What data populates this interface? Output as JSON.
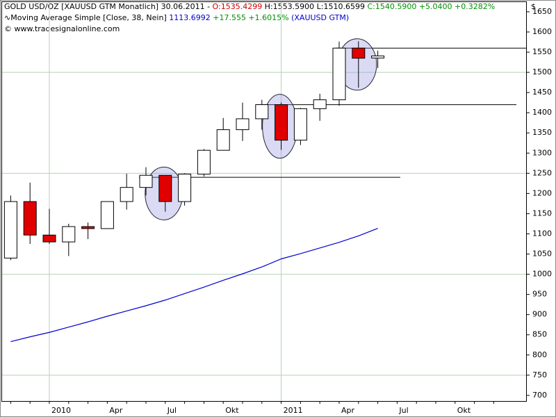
{
  "chart_data": {
    "type": "candlestick",
    "header": {
      "title": "GOLD USD/OZ [XAUUSD GTM  Monatlich] 30.06.2011 - ",
      "open": "O:1535.4299",
      "high_low": " H:1553.5900 L:1510.6599 ",
      "close": "C:1540.5900 +5.0400 +0.3282%",
      "ma_name": "Moving Average Simple [Close, 38, Nein] ",
      "ma_value": "1113.6992",
      "ma_change": " +17.555 +1.6015% ",
      "ma_symbol": "(XAUUSD GTM)",
      "copyright": "© www.tradesignalonline.com",
      "currency": "$"
    },
    "categories": [
      null,
      null,
      "2010",
      null,
      null,
      "Apr",
      null,
      null,
      "Jul",
      null,
      null,
      "Okt",
      null,
      null,
      "2011",
      null,
      null,
      "Apr",
      null,
      null,
      "Jul",
      null,
      null,
      "Okt",
      null,
      null
    ],
    "open": [
      1040,
      1180,
      1097,
      1080,
      1118,
      1113,
      1180,
      1215,
      1245,
      1180,
      1248,
      1307,
      1358,
      1385,
      1420,
      1332,
      1410,
      1432,
      1560,
      1535.4299,
      null,
      null,
      null,
      null,
      null,
      null
    ],
    "high": [
      1195,
      1227,
      1162,
      1125,
      1128,
      1180,
      1249,
      1265,
      1245,
      1250,
      1310,
      1387,
      1425,
      1432,
      1425,
      1412,
      1447,
      1576,
      1577,
      1553.59,
      null,
      null,
      null,
      null,
      null,
      null
    ],
    "low": [
      1035,
      1075,
      1075,
      1045,
      1087,
      1112,
      1160,
      1195,
      1155,
      1170,
      1242,
      1307,
      1330,
      1358,
      1308,
      1320,
      1380,
      1417,
      1462,
      1510.6599,
      null,
      null,
      null,
      null,
      null,
      null
    ],
    "close": [
      1180,
      1097,
      1080,
      1118,
      1113,
      1180,
      1215,
      1245,
      1180,
      1248,
      1307,
      1358,
      1385,
      1420,
      1332,
      1410,
      1432,
      1560,
      1535,
      1540.59,
      null,
      null,
      null,
      null,
      null,
      null
    ],
    "moving_average": {
      "color": "#0000cc",
      "values": [
        833,
        845,
        856,
        869,
        882,
        896,
        909,
        922,
        936,
        952,
        968,
        985,
        1001,
        1018,
        1038,
        1051,
        1065,
        1079,
        1095,
        1113.6992,
        null,
        null,
        null,
        null,
        null,
        null
      ]
    },
    "up_color": "#ffffff",
    "down_color": "#e00000",
    "levels": [
      1240,
      1420,
      1560
    ],
    "ylim": [
      686,
      1674
    ],
    "yticks": [
      700,
      750,
      800,
      850,
      900,
      950,
      1000,
      1050,
      1100,
      1150,
      1200,
      1250,
      1300,
      1350,
      1400,
      1450,
      1500,
      1550,
      1600,
      1650
    ],
    "ygrid": [
      750,
      1000,
      1250,
      1500
    ]
  }
}
